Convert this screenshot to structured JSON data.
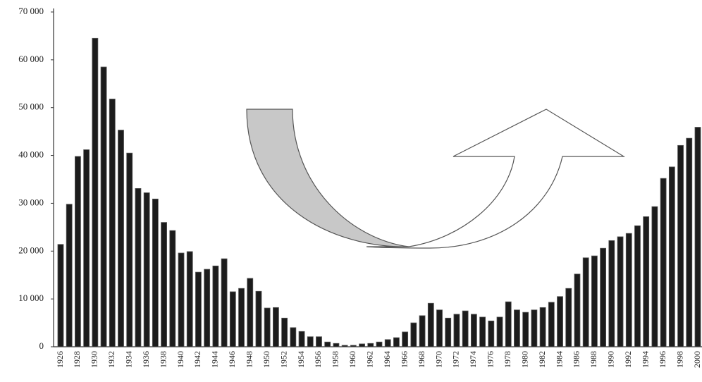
{
  "chart_data": {
    "type": "bar",
    "categories": [
      "1926",
      null,
      "1928",
      null,
      "1930",
      null,
      "1932",
      null,
      "1934",
      null,
      "1936",
      null,
      "1938",
      null,
      "1940",
      null,
      "1942",
      null,
      "1944",
      null,
      "1946",
      null,
      "1948",
      null,
      "1950",
      null,
      "1952",
      null,
      "1954",
      null,
      "1956",
      null,
      "1958",
      null,
      "1960",
      null,
      "1962",
      null,
      "1964",
      null,
      "1966",
      null,
      "1968",
      null,
      "1970",
      null,
      "1972",
      null,
      "1974",
      null,
      "1976",
      null,
      "1978",
      null,
      "1980",
      null,
      "1982",
      null,
      "1984",
      null,
      "1986",
      null,
      "1988",
      null,
      "1990",
      null,
      "1992",
      null,
      "1994",
      null,
      "1996",
      null,
      "1998",
      null,
      "2000"
    ],
    "values": [
      21400,
      29800,
      39800,
      41200,
      64500,
      58500,
      51800,
      45300,
      40500,
      33100,
      32200,
      30900,
      26000,
      24300,
      19600,
      19900,
      15600,
      16200,
      16900,
      18400,
      11500,
      12200,
      14300,
      11600,
      8100,
      8200,
      6000,
      4000,
      3200,
      2100,
      2100,
      1000,
      700,
      300,
      300,
      600,
      700,
      1000,
      1500,
      1900,
      3100,
      5000,
      6500,
      9100,
      7700,
      6000,
      6800,
      7500,
      6800,
      6200,
      5400,
      6200,
      9400,
      7700,
      7200,
      7700,
      8200,
      9300,
      10500,
      12200,
      15200,
      18600,
      19000,
      20600,
      22200,
      23000,
      23700,
      25300,
      27200,
      29300,
      35200,
      37600,
      42100,
      43600,
      45900
    ],
    "color": "#1c1c1c",
    "ylim": [
      0,
      70000
    ],
    "yticks": [
      0,
      {
        "value": 10000,
        "label": "10 000"
      },
      {
        "value": 20000,
        "label": "20 000"
      },
      {
        "value": 30000,
        "label": "30 000"
      },
      {
        "value": 40000,
        "label": "40 000"
      },
      {
        "value": 50000,
        "label": "50 000"
      },
      {
        "value": 60000,
        "label": "60 000"
      },
      {
        "value": 70000,
        "label": "70 000"
      }
    ],
    "grid": false
  }
}
